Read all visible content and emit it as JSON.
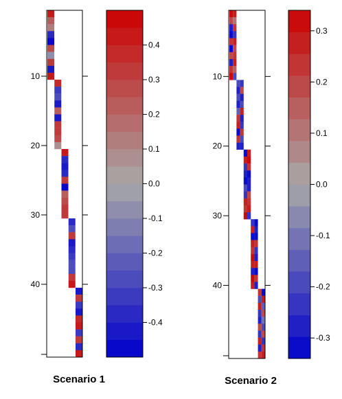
{
  "chart_data": [
    {
      "type": "heatmap",
      "title": "Scenario 1",
      "y_ticks": [
        "10",
        "20",
        "30",
        "40"
      ],
      "ylim": [
        0.5,
        50.5
      ],
      "block_columns": [
        {
          "rows": [
            1,
            10
          ],
          "values": [
            0.4,
            0.22,
            0.14,
            -0.36,
            -0.48,
            0.26,
            -0.1,
            0.32,
            -0.4,
            0.44
          ]
        },
        {
          "rows": [
            11,
            20
          ],
          "values": [
            0.36,
            -0.32,
            -0.26,
            -0.42,
            0.24,
            -0.44,
            0.32,
            0.3,
            0.28,
            0.08
          ]
        },
        {
          "rows": [
            21,
            30
          ],
          "values": [
            0.44,
            -0.36,
            -0.44,
            -0.38,
            0.32,
            -0.48,
            0.24,
            0.28,
            0.32,
            0.3
          ]
        },
        {
          "rows": [
            31,
            40
          ],
          "values": [
            -0.36,
            -0.3,
            0.34,
            -0.44,
            -0.36,
            -0.34,
            -0.28,
            -0.26,
            0.3,
            0.44
          ]
        },
        {
          "rows": [
            41,
            50
          ],
          "values": [
            -0.44,
            0.34,
            -0.32,
            -0.44,
            0.36,
            0.4,
            -0.34,
            0.3,
            -0.38,
            0.44
          ]
        }
      ],
      "colorbar": {
        "ticks": [
          "0.4",
          "0.3",
          "0.2",
          "0.1",
          "0.0",
          "-0.1",
          "-0.2",
          "-0.3",
          "-0.4"
        ],
        "range": [
          -0.5,
          0.5
        ],
        "levels": 20,
        "colors": {
          "low": "#0000cc",
          "mid": "#a8a8a8",
          "high": "#cc0000"
        }
      }
    },
    {
      "type": "heatmap",
      "title": "Scenario 2",
      "y_ticks": [
        "10",
        "20",
        "30",
        "40"
      ],
      "ylim": [
        0.5,
        50.5
      ],
      "block_columns": [
        {
          "rows": [
            1,
            10
          ],
          "values": [
            0.3,
            0.2,
            -0.26,
            -0.32,
            0.24,
            -0.3,
            0.18,
            -0.28,
            0.22,
            0.3
          ]
        },
        {
          "rows": [
            1,
            10
          ],
          "values": [
            0.28,
            0.1,
            0.22,
            -0.24,
            0.26,
            0.18,
            0.24,
            0.28,
            0.16,
            -0.2
          ]
        },
        {
          "rows": [
            11,
            20
          ],
          "values": [
            -0.2,
            -0.28,
            -0.18,
            -0.26,
            -0.14,
            0.22,
            0.28,
            -0.3,
            0.24,
            -0.26
          ]
        },
        {
          "rows": [
            11,
            20
          ],
          "values": [
            -0.22,
            0.18,
            -0.26,
            -0.2,
            0.26,
            -0.28,
            -0.24,
            0.22,
            -0.18,
            -0.26
          ]
        },
        {
          "rows": [
            21,
            30
          ],
          "values": [
            -0.3,
            0.28,
            -0.24,
            -0.26,
            -0.3,
            -0.2,
            -0.22,
            0.26,
            0.24,
            0.3
          ]
        },
        {
          "rows": [
            21,
            30
          ],
          "values": [
            0.26,
            0.3,
            0.24,
            -0.3,
            -0.26,
            -0.28,
            0.2,
            0.24,
            0.28,
            -0.24
          ]
        },
        {
          "rows": [
            31,
            40
          ],
          "values": [
            -0.22,
            0.26,
            -0.3,
            0.28,
            0.24,
            0.3,
            0.26,
            -0.28,
            0.3,
            0.28
          ]
        },
        {
          "rows": [
            31,
            40
          ],
          "values": [
            -0.3,
            -0.26,
            -0.3,
            0.22,
            -0.24,
            -0.28,
            0.26,
            -0.3,
            0.24,
            -0.26
          ]
        },
        {
          "rows": [
            41,
            50
          ],
          "values": [
            0.24,
            -0.2,
            0.28,
            -0.22,
            -0.26,
            0.2,
            -0.24,
            0.26,
            -0.28,
            0.22
          ]
        },
        {
          "rows": [
            41,
            50
          ],
          "values": [
            -0.3,
            0.26,
            -0.16,
            0.18,
            -0.12,
            -0.18,
            0.2,
            -0.22,
            0.24,
            0.26
          ]
        }
      ],
      "colorbar": {
        "ticks": [
          "0.3",
          "0.2",
          "0.1",
          "0.0",
          "-0.1",
          "-0.2",
          "-0.3"
        ],
        "range": [
          -0.34,
          0.34
        ],
        "levels": 16,
        "colors": {
          "low": "#0000cc",
          "mid": "#a8a8a8",
          "high": "#cc0000"
        }
      }
    }
  ]
}
